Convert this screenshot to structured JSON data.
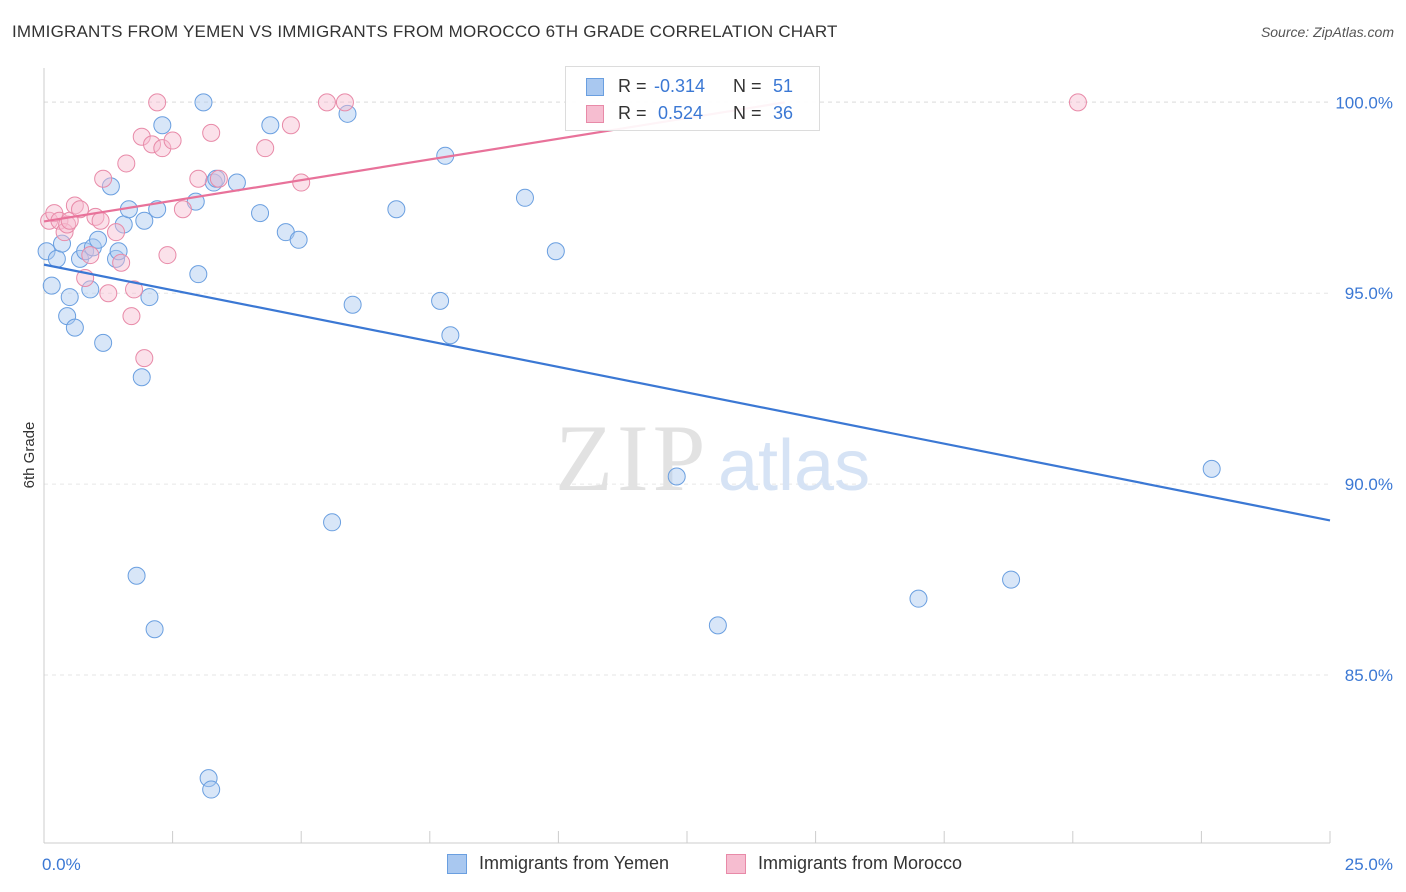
{
  "header": {
    "title": "IMMIGRANTS FROM YEMEN VS IMMIGRANTS FROM MOROCCO 6TH GRADE CORRELATION CHART",
    "source": "Source: ZipAtlas.com"
  },
  "watermark": {
    "zip": "ZIP",
    "atlas": "atlas"
  },
  "legend": {
    "rows": [
      {
        "r_label": "R =",
        "r_value": "-0.314",
        "n_label": "N =",
        "n_value": "51",
        "color": "#a9c8f0",
        "border": "#6a9fe0"
      },
      {
        "r_label": "R =",
        "r_value": "0.524",
        "n_label": "N =",
        "n_value": "36",
        "color": "#f6bdd0",
        "border": "#e88aa8"
      }
    ]
  },
  "bottom_legend": {
    "items": [
      {
        "label": "Immigrants from Yemen",
        "color": "#a9c8f0",
        "border": "#6a9fe0"
      },
      {
        "label": "Immigrants from Morocco",
        "color": "#f6bdd0",
        "border": "#e88aa8"
      }
    ]
  },
  "chart_data": {
    "type": "scatter",
    "title": "IMMIGRANTS FROM YEMEN VS IMMIGRANTS FROM MOROCCO 6TH GRADE CORRELATION CHART",
    "xlabel": "",
    "ylabel": "6th Grade",
    "xlim": [
      0,
      25
    ],
    "ylim": [
      80.6,
      100.9
    ],
    "x_tick_labels": [
      "0.0%",
      "25.0%"
    ],
    "y_ticks": [
      85,
      90,
      95,
      100
    ],
    "y_tick_labels": [
      "85.0%",
      "90.0%",
      "95.0%",
      "100.0%"
    ],
    "grid": true,
    "colors": {
      "yemen": "#3b78d4",
      "morocco": "#e8729a",
      "tick_text": "#3b78d4"
    },
    "series": [
      {
        "name": "Immigrants from Yemen",
        "R": -0.314,
        "N": 51,
        "trend": {
          "x": [
            0,
            25
          ],
          "y": [
            95.75,
            89.05
          ]
        },
        "points": [
          [
            0.05,
            96.1
          ],
          [
            0.15,
            95.2
          ],
          [
            0.25,
            95.9
          ],
          [
            0.35,
            96.3
          ],
          [
            0.45,
            94.4
          ],
          [
            0.5,
            94.9
          ],
          [
            0.6,
            94.1
          ],
          [
            0.7,
            95.9
          ],
          [
            0.8,
            96.1
          ],
          [
            0.9,
            95.1
          ],
          [
            0.95,
            96.2
          ],
          [
            1.05,
            96.4
          ],
          [
            1.15,
            93.7
          ],
          [
            1.3,
            97.8
          ],
          [
            1.4,
            95.9
          ],
          [
            1.45,
            96.1
          ],
          [
            1.55,
            96.8
          ],
          [
            1.65,
            97.2
          ],
          [
            1.9,
            92.8
          ],
          [
            1.95,
            96.9
          ],
          [
            2.05,
            94.9
          ],
          [
            2.2,
            97.2
          ],
          [
            2.3,
            99.4
          ],
          [
            2.95,
            97.4
          ],
          [
            3.0,
            95.5
          ],
          [
            3.1,
            100.0
          ],
          [
            3.3,
            97.9
          ],
          [
            3.75,
            97.9
          ],
          [
            4.4,
            99.4
          ],
          [
            4.7,
            96.6
          ],
          [
            4.95,
            96.4
          ],
          [
            5.9,
            99.7
          ],
          [
            6.0,
            94.7
          ],
          [
            6.85,
            97.2
          ],
          [
            7.7,
            94.8
          ],
          [
            7.8,
            98.6
          ],
          [
            7.9,
            93.9
          ],
          [
            9.35,
            97.5
          ],
          [
            9.95,
            96.1
          ],
          [
            1.8,
            87.6
          ],
          [
            2.15,
            86.2
          ],
          [
            3.2,
            82.3
          ],
          [
            3.25,
            82.0
          ],
          [
            5.6,
            89.0
          ],
          [
            12.3,
            90.2
          ],
          [
            13.1,
            86.3
          ],
          [
            17.0,
            87.0
          ],
          [
            18.8,
            87.5
          ],
          [
            22.7,
            90.4
          ],
          [
            4.2,
            97.1
          ],
          [
            3.35,
            98.0
          ]
        ]
      },
      {
        "name": "Immigrants from Morocco",
        "R": 0.524,
        "N": 36,
        "trend": {
          "x": [
            0,
            14.4
          ],
          "y": [
            96.88,
            100.0
          ]
        },
        "points": [
          [
            0.1,
            96.9
          ],
          [
            0.2,
            97.1
          ],
          [
            0.3,
            96.9
          ],
          [
            0.4,
            96.6
          ],
          [
            0.45,
            96.8
          ],
          [
            0.5,
            96.9
          ],
          [
            0.6,
            97.3
          ],
          [
            0.7,
            97.2
          ],
          [
            0.8,
            95.4
          ],
          [
            0.9,
            96.0
          ],
          [
            1.0,
            97.0
          ],
          [
            1.1,
            96.9
          ],
          [
            1.15,
            98.0
          ],
          [
            1.25,
            95.0
          ],
          [
            1.4,
            96.6
          ],
          [
            1.5,
            95.8
          ],
          [
            1.6,
            98.4
          ],
          [
            1.7,
            94.4
          ],
          [
            1.75,
            95.1
          ],
          [
            1.9,
            99.1
          ],
          [
            1.95,
            93.3
          ],
          [
            2.1,
            98.9
          ],
          [
            2.2,
            100.0
          ],
          [
            2.3,
            98.8
          ],
          [
            2.4,
            96.0
          ],
          [
            2.5,
            99.0
          ],
          [
            2.7,
            97.2
          ],
          [
            3.0,
            98.0
          ],
          [
            3.25,
            99.2
          ],
          [
            3.4,
            98.0
          ],
          [
            4.3,
            98.8
          ],
          [
            4.8,
            99.4
          ],
          [
            5.0,
            97.9
          ],
          [
            5.5,
            100.0
          ],
          [
            5.85,
            100.0
          ],
          [
            20.1,
            100.0
          ]
        ]
      }
    ]
  }
}
